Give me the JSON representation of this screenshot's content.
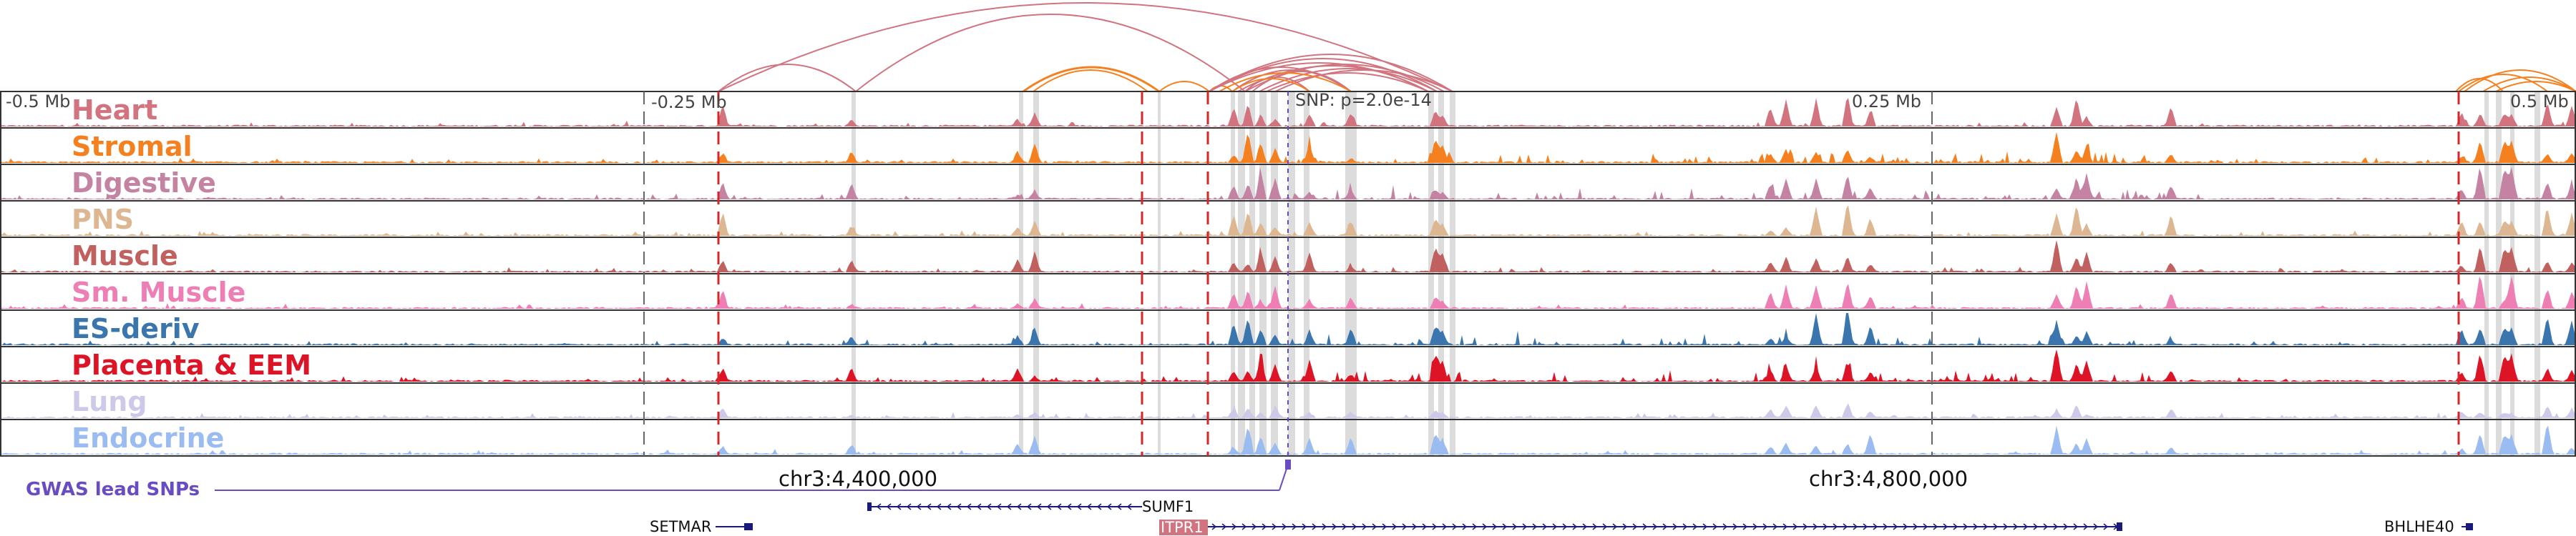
{
  "scale_ticks": [
    "-0.5 Mb",
    "-0.25 Mb",
    "0.25 Mb",
    "0.5 Mb"
  ],
  "snp_label": "SNP: p=2.0e-14",
  "tracks": [
    {
      "name": "Heart",
      "color": "#d1747f"
    },
    {
      "name": "Stromal",
      "color": "#f5801f"
    },
    {
      "name": "Digestive",
      "color": "#c583a3"
    },
    {
      "name": "PNS",
      "color": "#ddb791"
    },
    {
      "name": "Muscle",
      "color": "#c1615f"
    },
    {
      "name": "Sm. Muscle",
      "color": "#ee7fb5"
    },
    {
      "name": "ES-deriv",
      "color": "#3a75ae"
    },
    {
      "name": "Placenta & EEM",
      "color": "#dc1426"
    },
    {
      "name": "Lung",
      "color": "#ccc9e9"
    },
    {
      "name": "Endocrine",
      "color": "#9bbcf0"
    }
  ],
  "gwas_label": "GWAS lead SNPs",
  "gwas_color": "#6a4cc2",
  "coordinates": [
    "chr3:4,400,000",
    "chr3:4,800,000"
  ],
  "genes": [
    {
      "name": "SETMAR",
      "strand": "+",
      "highlight": false
    },
    {
      "name": "SUMF1",
      "strand": "-",
      "highlight": false
    },
    {
      "name": "ITPR1",
      "strand": "+",
      "highlight": true
    },
    {
      "name": "BHLHE40",
      "strand": "+",
      "highlight": false
    }
  ],
  "highlight_gene_color": "#d1747f"
}
